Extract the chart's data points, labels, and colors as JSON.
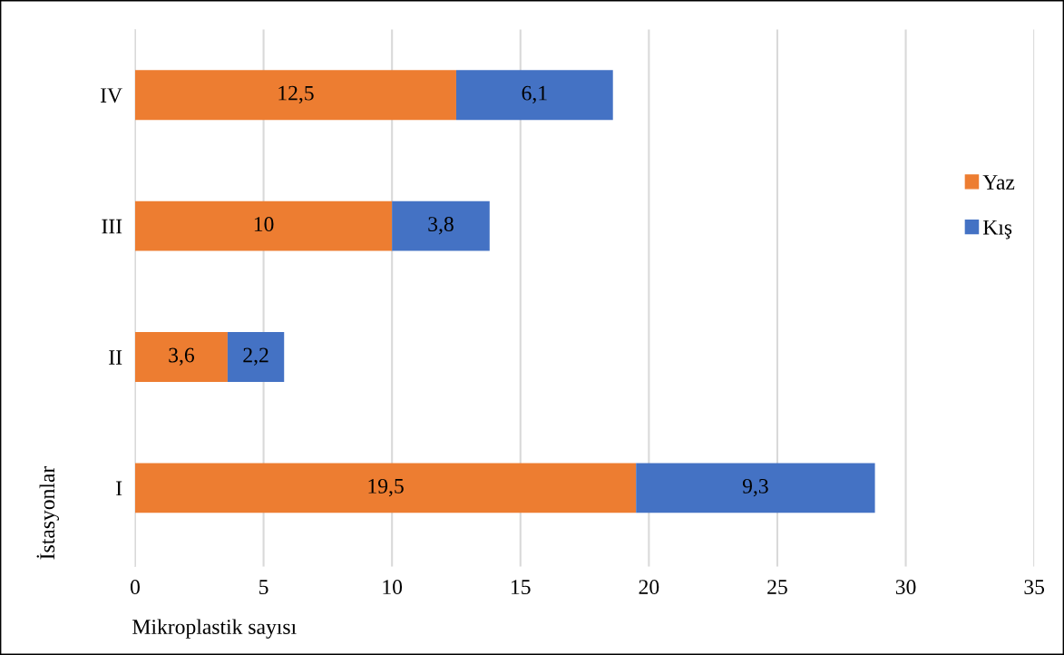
{
  "chart_data": {
    "type": "bar",
    "orientation": "horizontal",
    "stacked": true,
    "categories": [
      "IV",
      "III",
      "II",
      "I"
    ],
    "series": [
      {
        "name": "Yaz",
        "color": "#ed7d31",
        "values": [
          12.5,
          10,
          3.6,
          19.5
        ],
        "value_labels": [
          "12,5",
          "10",
          "3,6",
          "19,5"
        ]
      },
      {
        "name": "Kış",
        "color": "#4472c4",
        "values": [
          6.1,
          3.8,
          2.2,
          9.3
        ],
        "value_labels": [
          "6,1",
          "3,8",
          "2,2",
          "9,3"
        ]
      }
    ],
    "xlabel": "Mikroplastik sayısı",
    "ylabel": "İstasyonlar",
    "xlim": [
      0,
      35
    ],
    "xticks": [
      0,
      5,
      10,
      15,
      20,
      25,
      30,
      35
    ],
    "grid": "x",
    "legend": "right"
  }
}
